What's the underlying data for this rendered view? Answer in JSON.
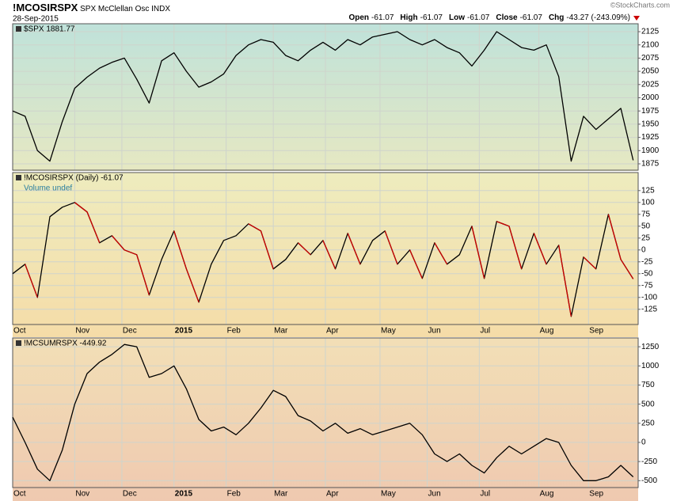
{
  "header": {
    "symbol": "!MCOSIRSPX",
    "name": "SPX McClellan Osc",
    "exchange": "INDX",
    "date": "28-Sep-2015",
    "credit": "©StockCharts.com",
    "quote": [
      {
        "label": "Open",
        "value": "-61.07"
      },
      {
        "label": "High",
        "value": "-61.07"
      },
      {
        "label": "Low",
        "value": "-61.07"
      },
      {
        "label": "Close",
        "value": "-61.07"
      },
      {
        "label": "Chg",
        "value": "-43.27 (-243.09%)"
      }
    ]
  },
  "chart_data": [
    {
      "type": "line",
      "title": "$SPX 1881.77",
      "background": [
        "#bfe2da",
        "#e6e8c2"
      ],
      "grid": true,
      "show_xlabels": false,
      "xlim": [
        0,
        252
      ],
      "xticks": [
        {
          "value": 0,
          "label": "Oct"
        },
        {
          "value": 25,
          "label": "Nov"
        },
        {
          "value": 44,
          "label": "Dec"
        },
        {
          "value": 65,
          "label": "2015"
        },
        {
          "value": 86,
          "label": "Feb"
        },
        {
          "value": 105,
          "label": "Mar"
        },
        {
          "value": 126,
          "label": "Apr"
        },
        {
          "value": 148,
          "label": "May"
        },
        {
          "value": 167,
          "label": "Jun"
        },
        {
          "value": 188,
          "label": "Jul"
        },
        {
          "value": 212,
          "label": "Aug"
        },
        {
          "value": 232,
          "label": "Sep"
        }
      ],
      "ylim": [
        1863,
        2140
      ],
      "yticks": [
        1875,
        1900,
        1925,
        1950,
        1975,
        2000,
        2025,
        2050,
        2075,
        2100,
        2125
      ],
      "x": [
        0,
        5,
        10,
        15,
        20,
        25,
        30,
        35,
        40,
        45,
        50,
        55,
        60,
        65,
        70,
        75,
        80,
        85,
        90,
        95,
        100,
        105,
        110,
        115,
        120,
        125,
        130,
        135,
        140,
        145,
        150,
        155,
        160,
        165,
        170,
        175,
        180,
        185,
        190,
        195,
        200,
        205,
        210,
        215,
        220,
        225,
        230,
        235,
        240,
        245,
        250
      ],
      "series": [
        {
          "name": "$SPX",
          "color": "#000000",
          "values": [
            1975,
            1965,
            1900,
            1880,
            1955,
            2018,
            2039,
            2056,
            2067,
            2075,
            2035,
            1990,
            2070,
            2085,
            2050,
            2020,
            2030,
            2045,
            2080,
            2100,
            2110,
            2105,
            2080,
            2070,
            2090,
            2105,
            2090,
            2110,
            2100,
            2115,
            2120,
            2125,
            2110,
            2100,
            2110,
            2095,
            2085,
            2060,
            2090,
            2125,
            2110,
            2095,
            2090,
            2100,
            2040,
            1880,
            1965,
            1940,
            1960,
            1980,
            1881.77
          ]
        }
      ]
    },
    {
      "type": "line",
      "title": "!MCOSIRSPX (Daily) -61.07",
      "sublabel": "Volume undef",
      "background": [
        "#eeecbe",
        "#f5dca8"
      ],
      "grid": true,
      "show_xlabels": true,
      "xlim": [
        0,
        252
      ],
      "xticks": [
        {
          "value": 0,
          "label": "Oct"
        },
        {
          "value": 25,
          "label": "Nov"
        },
        {
          "value": 44,
          "label": "Dec"
        },
        {
          "value": 65,
          "label": "2015"
        },
        {
          "value": 86,
          "label": "Feb"
        },
        {
          "value": 105,
          "label": "Mar"
        },
        {
          "value": 126,
          "label": "Apr"
        },
        {
          "value": 148,
          "label": "May"
        },
        {
          "value": 167,
          "label": "Jun"
        },
        {
          "value": 188,
          "label": "Jul"
        },
        {
          "value": 212,
          "label": "Aug"
        },
        {
          "value": 232,
          "label": "Sep"
        }
      ],
      "ylim": [
        -157,
        163
      ],
      "yticks": [
        -125,
        -100,
        -75,
        -50,
        -25,
        0,
        25,
        50,
        75,
        100,
        125
      ],
      "x": [
        0,
        5,
        10,
        15,
        20,
        25,
        30,
        35,
        40,
        45,
        50,
        55,
        60,
        65,
        70,
        75,
        80,
        85,
        90,
        95,
        100,
        105,
        110,
        115,
        120,
        125,
        130,
        135,
        140,
        145,
        150,
        155,
        160,
        165,
        170,
        175,
        180,
        185,
        190,
        195,
        200,
        205,
        210,
        215,
        220,
        225,
        230,
        235,
        240,
        245,
        250
      ],
      "series": [
        {
          "name": "!MCOSIRSPX",
          "color": "#000000",
          "down_color": "#cc0000",
          "values": [
            -50,
            -30,
            -100,
            70,
            90,
            100,
            80,
            15,
            30,
            0,
            -10,
            -95,
            -20,
            40,
            -40,
            -110,
            -30,
            20,
            30,
            55,
            40,
            -40,
            -20,
            15,
            -10,
            20,
            -40,
            35,
            -30,
            20,
            40,
            -30,
            0,
            -60,
            15,
            -30,
            -10,
            50,
            -60,
            60,
            50,
            -40,
            35,
            -30,
            10,
            -140,
            -15,
            -40,
            75,
            -20,
            -61.07
          ]
        }
      ]
    },
    {
      "type": "line",
      "title": "!MCSUMRSPX -449.92",
      "background": [
        "#f2dfb6",
        "#efc9b0"
      ],
      "grid": true,
      "show_xlabels": true,
      "xlim": [
        0,
        252
      ],
      "xticks": [
        {
          "value": 0,
          "label": "Oct"
        },
        {
          "value": 25,
          "label": "Nov"
        },
        {
          "value": 44,
          "label": "Dec"
        },
        {
          "value": 65,
          "label": "2015"
        },
        {
          "value": 86,
          "label": "Feb"
        },
        {
          "value": 105,
          "label": "Mar"
        },
        {
          "value": 126,
          "label": "Apr"
        },
        {
          "value": 148,
          "label": "May"
        },
        {
          "value": 167,
          "label": "Jun"
        },
        {
          "value": 188,
          "label": "Jul"
        },
        {
          "value": 212,
          "label": "Aug"
        },
        {
          "value": 232,
          "label": "Sep"
        }
      ],
      "ylim": [
        -590,
        1365
      ],
      "yticks": [
        -500,
        -250,
        0,
        250,
        500,
        750,
        1000,
        1250
      ],
      "x": [
        0,
        5,
        10,
        15,
        20,
        25,
        30,
        35,
        40,
        45,
        50,
        55,
        60,
        65,
        70,
        75,
        80,
        85,
        90,
        95,
        100,
        105,
        110,
        115,
        120,
        125,
        130,
        135,
        140,
        145,
        150,
        155,
        160,
        165,
        170,
        175,
        180,
        185,
        190,
        195,
        200,
        205,
        210,
        215,
        220,
        225,
        230,
        235,
        240,
        245,
        250
      ],
      "series": [
        {
          "name": "!MCSUMRSPX",
          "color": "#000000",
          "values": [
            330,
            0,
            -350,
            -500,
            -100,
            500,
            900,
            1050,
            1150,
            1280,
            1250,
            850,
            900,
            1000,
            700,
            300,
            150,
            200,
            100,
            250,
            450,
            680,
            600,
            350,
            280,
            150,
            250,
            120,
            180,
            100,
            150,
            200,
            250,
            100,
            -150,
            -250,
            -150,
            -300,
            -400,
            -200,
            -50,
            -150,
            -50,
            50,
            0,
            -300,
            -500,
            -500,
            -450,
            -300,
            -449.92
          ]
        }
      ]
    }
  ]
}
